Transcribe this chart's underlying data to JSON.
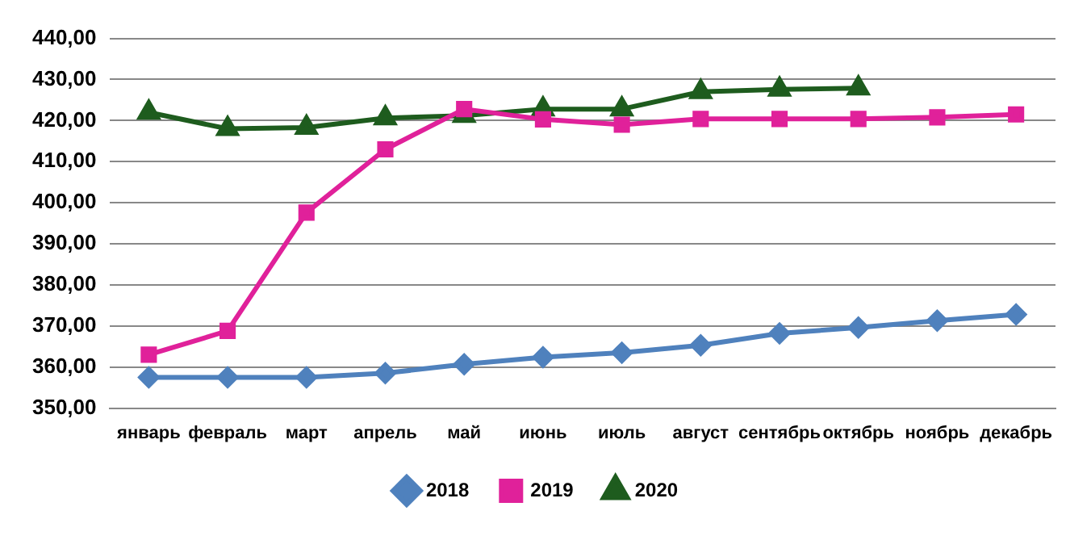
{
  "chart_data": {
    "type": "line",
    "categories": [
      "январь",
      "февраль",
      "март",
      "апрель",
      "май",
      "июнь",
      "июль",
      "август",
      "сентябрь",
      "октябрь",
      "ноябрь",
      "декабрь"
    ],
    "series": [
      {
        "name": "2018",
        "color": "#4f81bd",
        "marker": "diamond",
        "values": [
          357.5,
          357.5,
          357.5,
          358.5,
          360.7,
          362.4,
          363.5,
          365.3,
          368.2,
          369.6,
          371.3,
          372.8
        ]
      },
      {
        "name": "2019",
        "color": "#e0219a",
        "marker": "square",
        "values": [
          363,
          368.8,
          397.6,
          413,
          422.8,
          420.3,
          419,
          420.4,
          420.4,
          420.4,
          420.8,
          421.5
        ]
      },
      {
        "name": "2020",
        "color": "#1e5c1e",
        "marker": "triangle",
        "values": [
          422,
          418,
          418.3,
          420.6,
          421.2,
          422.8,
          422.8,
          427,
          427.6,
          427.9,
          null,
          null
        ]
      }
    ],
    "ylim": [
      350,
      440
    ],
    "yticks": [
      {
        "value": 350,
        "label": "350,00"
      },
      {
        "value": 360,
        "label": "360,00"
      },
      {
        "value": 370,
        "label": "370,00"
      },
      {
        "value": 380,
        "label": "380,00"
      },
      {
        "value": 390,
        "label": "390,00"
      },
      {
        "value": 400,
        "label": "400,00"
      },
      {
        "value": 410,
        "label": "410,00"
      },
      {
        "value": 420,
        "label": "420,00"
      },
      {
        "value": 430,
        "label": "430,00"
      },
      {
        "value": 440,
        "label": "440,00"
      }
    ],
    "grid": "y",
    "legend": "bottom"
  }
}
